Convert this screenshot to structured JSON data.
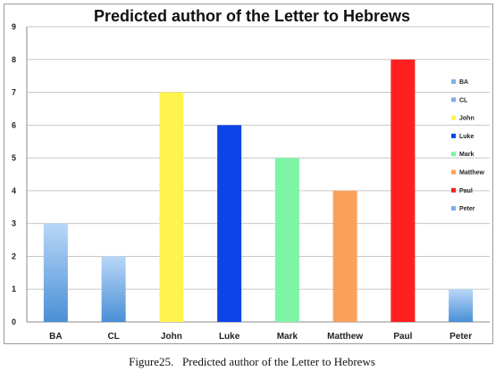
{
  "chart_data": {
    "type": "bar",
    "title": "Predicted author of the Letter to Hebrews",
    "categories": [
      "BA",
      "CL",
      "John",
      "Luke",
      "Mark",
      "Matthew",
      "Paul",
      "Peter"
    ],
    "values": [
      3,
      2,
      7,
      6,
      5,
      4,
      8,
      1
    ],
    "ylim": [
      0,
      9
    ],
    "yticks": [
      "0",
      "1",
      "2",
      "3",
      "4",
      "5",
      "6",
      "7",
      "8",
      "9"
    ],
    "xlabel": "",
    "ylabel": "",
    "grid": true,
    "legend_position": "right",
    "legend": [
      "BA",
      "CL",
      "John",
      "Luke",
      "Mark",
      "Matthew",
      "Paul",
      "Peter"
    ],
    "colors": [
      "#7fb0e6",
      "#7fb0e6",
      "#fff34d",
      "#0b45e8",
      "#7df5a5",
      "#fba05a",
      "#ff1f1f",
      "#7fb0e6"
    ]
  },
  "caption": "Figure25.   Predicted author of the Letter to Hebrews"
}
